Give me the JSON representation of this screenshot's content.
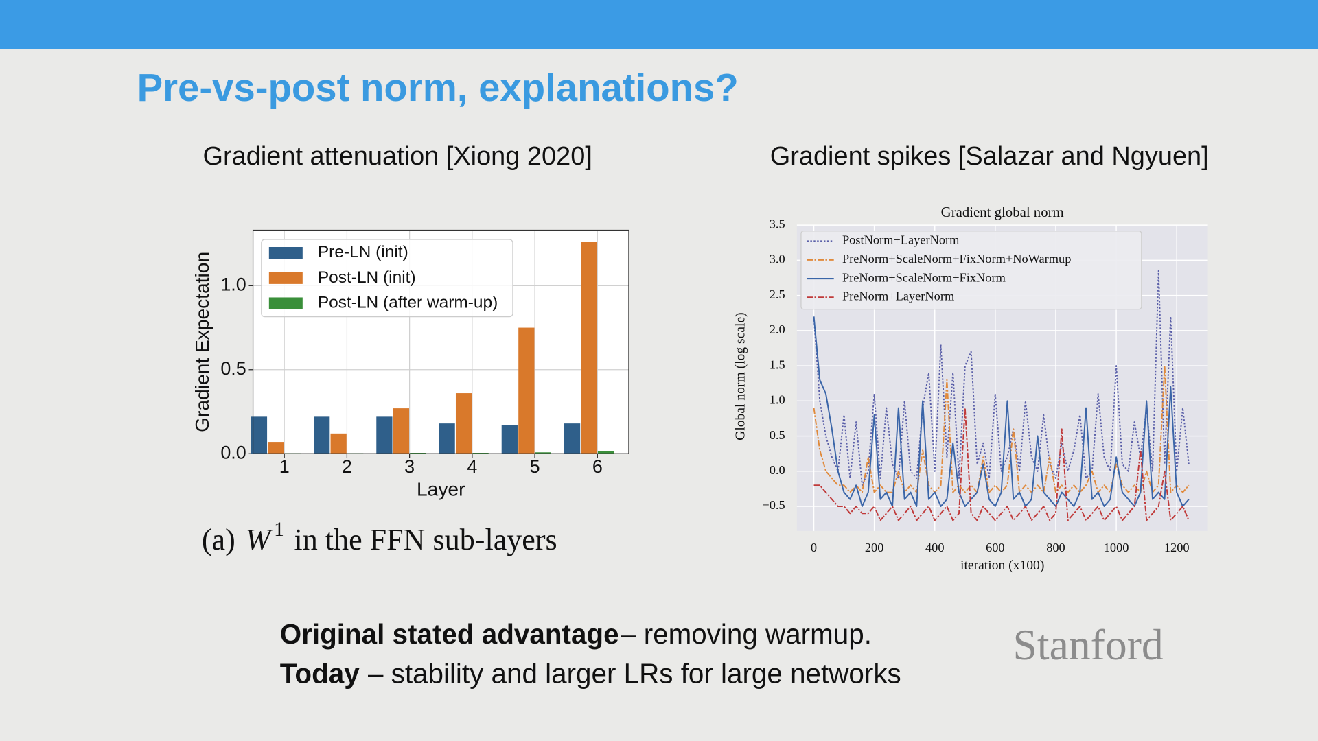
{
  "slide": {
    "title": "Pre-vs-post norm, explanations?",
    "left_heading": "Gradient attenuation [Xiong 2020]",
    "right_heading": "Gradient spikes [Salazar and Ngyuen]",
    "notes": [
      {
        "bold": "Original stated advantage",
        "text": "– removing warmup."
      },
      {
        "bold": "Today",
        "text": "– stability and larger LRs for large networks"
      }
    ],
    "logo": "Stanford"
  },
  "chart_data": [
    {
      "type": "bar",
      "xlabel": "Layer",
      "ylabel": "Gradient Expectation",
      "categories": [
        "1",
        "2",
        "3",
        "4",
        "5",
        "6"
      ],
      "series": [
        {
          "name": "Pre-LN (init)",
          "color": "#2f5f8a",
          "values": [
            0.22,
            0.22,
            0.22,
            0.18,
            0.17,
            0.18
          ]
        },
        {
          "name": "Post-LN (init)",
          "color": "#d9792b",
          "values": [
            0.07,
            0.12,
            0.27,
            0.36,
            0.75,
            1.26
          ]
        },
        {
          "name": "Post-LN (after warm-up)",
          "color": "#3a8f3a",
          "values": [
            0.003,
            0.003,
            0.005,
            0.005,
            0.008,
            0.015
          ]
        }
      ],
      "ylim": [
        0,
        1.33
      ],
      "yticks": [
        {
          "value": 0,
          "label": "0.0"
        },
        0.5,
        {
          "value": 1,
          "label": "1.0"
        }
      ],
      "grid": true,
      "legend": "upper left",
      "caption": {
        "prefix": "(a)",
        "symbol": "W",
        "superscript": "1",
        "suffix": "in the FFN sub-layers"
      }
    },
    {
      "type": "line",
      "title": "Gradient global norm",
      "xlabel": "iteration (x100)",
      "ylabel": "Global norm (log scale)",
      "x": [
        0,
        20,
        40,
        60,
        80,
        100,
        120,
        140,
        160,
        180,
        200,
        220,
        240,
        260,
        280,
        300,
        320,
        340,
        360,
        380,
        400,
        420,
        440,
        460,
        480,
        500,
        520,
        540,
        560,
        580,
        600,
        620,
        640,
        660,
        680,
        700,
        720,
        740,
        760,
        780,
        800,
        820,
        840,
        860,
        880,
        900,
        920,
        940,
        960,
        980,
        1000,
        1020,
        1040,
        1060,
        1080,
        1100,
        1120,
        1140,
        1160,
        1180,
        1200,
        1220,
        1240
      ],
      "series": [
        {
          "name": "PostNorm+LayerNorm",
          "color": "#5a5fa8",
          "dash": "dotted",
          "values": [
            2.2,
            1.0,
            0.5,
            0.2,
            0.0,
            0.8,
            -0.1,
            0.7,
            -0.2,
            0.0,
            1.1,
            -0.1,
            0.9,
            0.1,
            -0.1,
            1.0,
            0.0,
            -0.1,
            0.9,
            1.4,
            0.0,
            1.8,
            0.2,
            1.4,
            -0.1,
            1.5,
            1.7,
            0.1,
            0.4,
            -0.1,
            1.1,
            0.0,
            0.2,
            0.6,
            0.0,
            1.0,
            0.2,
            0.0,
            0.8,
            0.1,
            -0.1,
            0.4,
            0.0,
            0.3,
            0.8,
            -0.1,
            0.0,
            1.1,
            0.2,
            0.0,
            1.5,
            0.1,
            0.0,
            0.7,
            0.2,
            0.9,
            0.0,
            2.85,
            0.1,
            2.2,
            0.0,
            0.9,
            0.1
          ]
        },
        {
          "name": "PreNorm+ScaleNorm+FixNorm+NoWarmup",
          "color": "#e08a3c",
          "dash": "dashdot",
          "values": [
            0.9,
            0.3,
            0.0,
            -0.1,
            -0.2,
            -0.2,
            -0.3,
            -0.2,
            -0.3,
            0.2,
            -0.3,
            -0.2,
            -0.3,
            -0.3,
            0.0,
            -0.3,
            -0.2,
            -0.3,
            0.3,
            -0.2,
            -0.3,
            -0.2,
            1.3,
            -0.3,
            -0.2,
            -0.3,
            -0.2,
            -0.3,
            0.2,
            -0.3,
            -0.2,
            -0.3,
            -0.2,
            0.6,
            -0.3,
            -0.2,
            -0.3,
            -0.2,
            -0.3,
            0.2,
            -0.3,
            -0.2,
            -0.3,
            -0.2,
            -0.3,
            -0.2,
            0.0,
            -0.3,
            -0.2,
            -0.3,
            0.1,
            -0.2,
            -0.3,
            -0.2,
            -0.3,
            0.0,
            -0.3,
            -0.2,
            1.5,
            -0.3,
            -0.2,
            -0.3,
            -0.2
          ]
        },
        {
          "name": "PreNorm+ScaleNorm+FixNorm",
          "color": "#3a65a8",
          "dash": "solid",
          "values": [
            2.2,
            1.3,
            1.1,
            0.6,
            0.0,
            -0.3,
            -0.4,
            -0.2,
            -0.5,
            -0.3,
            0.8,
            -0.4,
            -0.3,
            -0.5,
            0.9,
            -0.4,
            -0.3,
            -0.5,
            1.0,
            -0.4,
            -0.3,
            -0.5,
            -0.4,
            0.4,
            -0.3,
            -0.5,
            -0.4,
            -0.3,
            0.1,
            -0.4,
            -0.5,
            -0.3,
            1.0,
            -0.4,
            -0.3,
            -0.5,
            -0.4,
            0.5,
            -0.3,
            -0.4,
            -0.5,
            -0.3,
            -0.4,
            -0.5,
            -0.3,
            0.9,
            -0.4,
            -0.3,
            -0.5,
            -0.4,
            0.2,
            -0.3,
            -0.4,
            -0.5,
            -0.3,
            1.0,
            -0.4,
            -0.3,
            -0.4,
            1.2,
            -0.3,
            -0.5,
            -0.4
          ]
        },
        {
          "name": "PreNorm+LayerNorm",
          "color": "#c03a3a",
          "dash": "dashdot",
          "values": [
            -0.2,
            -0.2,
            -0.3,
            -0.4,
            -0.5,
            -0.5,
            -0.6,
            -0.5,
            -0.6,
            -0.6,
            -0.5,
            -0.7,
            -0.6,
            -0.5,
            -0.7,
            -0.6,
            -0.5,
            -0.7,
            -0.6,
            -0.5,
            -0.7,
            -0.6,
            -0.5,
            -0.7,
            -0.6,
            0.9,
            -0.6,
            -0.7,
            -0.5,
            -0.6,
            -0.7,
            -0.6,
            -0.5,
            -0.7,
            -0.6,
            -0.5,
            -0.7,
            -0.6,
            -0.5,
            -0.7,
            -0.6,
            0.6,
            -0.7,
            -0.6,
            -0.5,
            -0.7,
            -0.6,
            -0.5,
            -0.7,
            -0.6,
            -0.5,
            -0.7,
            -0.6,
            -0.5,
            0.3,
            -0.7,
            -0.6,
            -0.5,
            0.0,
            -0.7,
            -0.6,
            -0.5,
            -0.7
          ]
        }
      ],
      "xlim": [
        -56,
        1303
      ],
      "xticks": [
        0,
        200,
        400,
        600,
        800,
        1000,
        1200
      ],
      "ylim": [
        -0.85,
        3.5
      ],
      "yticks": [
        {
          "value": -0.5,
          "label": "−0.5"
        },
        {
          "value": 0,
          "label": "0.0"
        },
        0.5,
        {
          "value": 1,
          "label": "1.0"
        },
        1.5,
        {
          "value": 2,
          "label": "2.0"
        },
        2.5,
        {
          "value": 3,
          "label": "3.0"
        },
        3.5
      ],
      "grid": true,
      "legend": "upper left"
    }
  ]
}
